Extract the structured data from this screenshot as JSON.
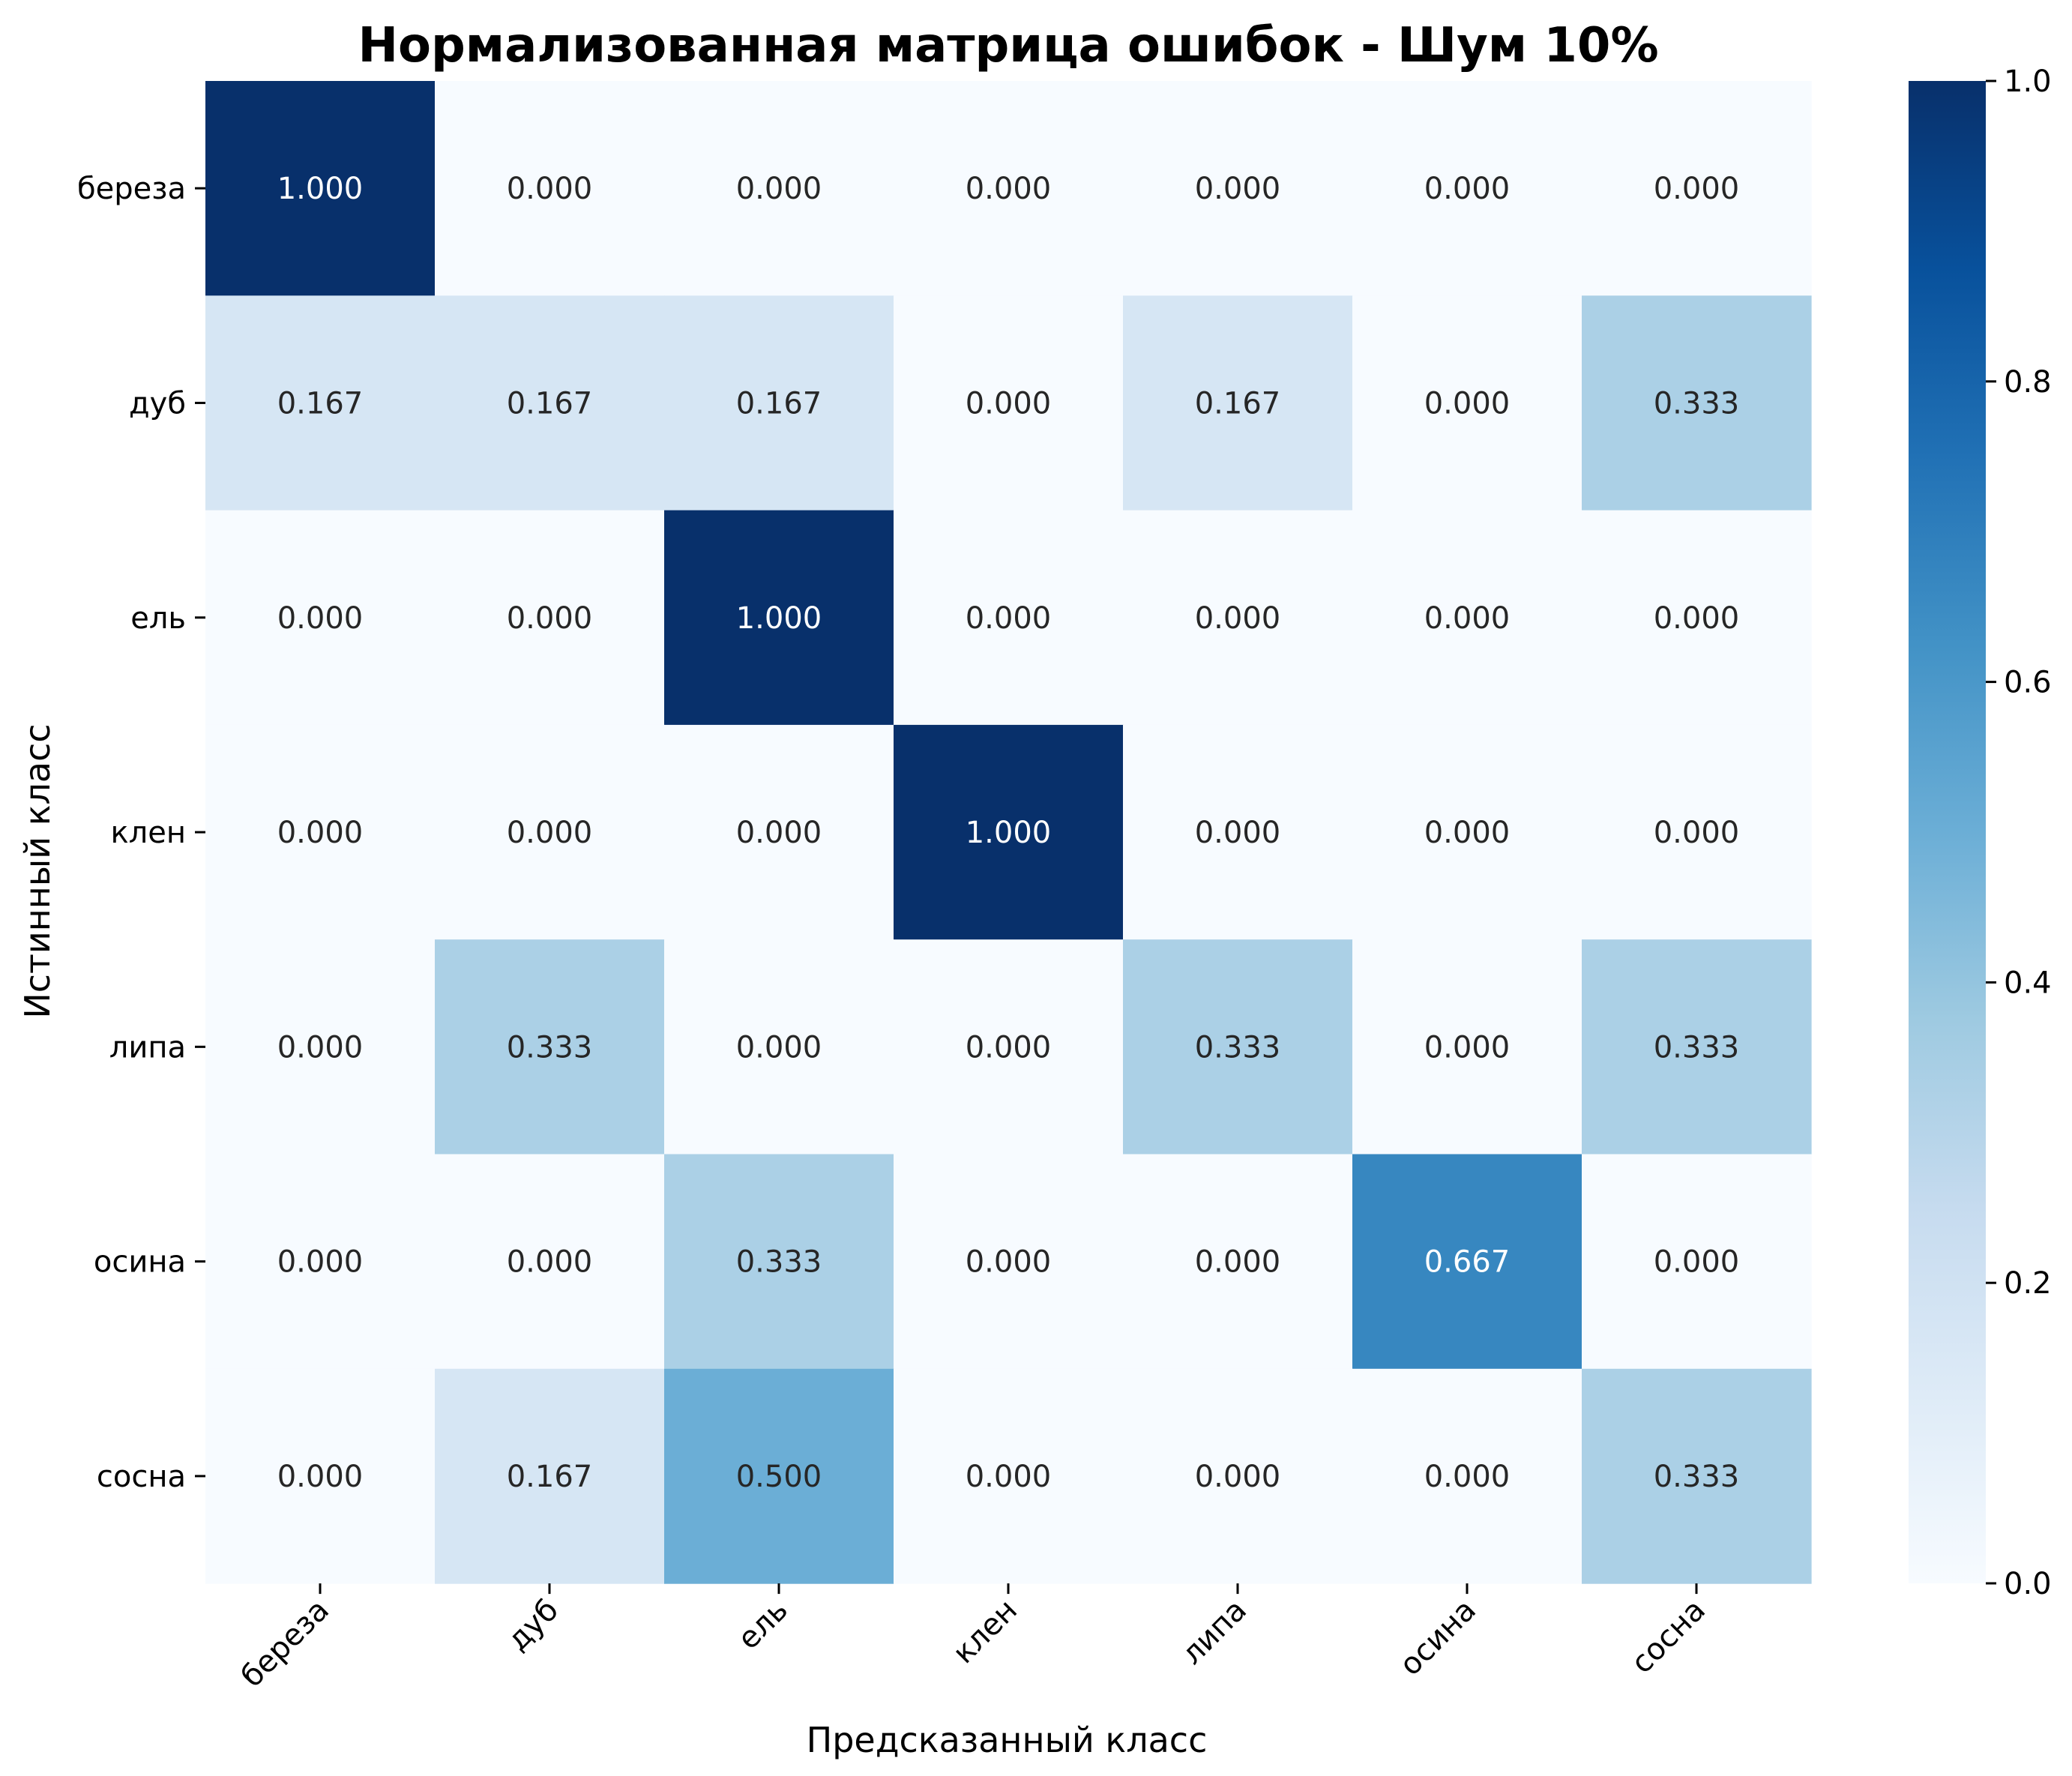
{
  "chart_data": {
    "type": "heatmap",
    "title": "Нормализованная матрица ошибок - Шум 10%",
    "xlabel": "Предсказанный класс",
    "ylabel": "Истинный класс",
    "x_categories": [
      "береза",
      "дуб",
      "ель",
      "клен",
      "липа",
      "осина",
      "сосна"
    ],
    "y_categories": [
      "береза",
      "дуб",
      "ель",
      "клен",
      "липа",
      "осина",
      "сосна"
    ],
    "values": [
      [
        1.0,
        0.0,
        0.0,
        0.0,
        0.0,
        0.0,
        0.0
      ],
      [
        0.167,
        0.167,
        0.167,
        0.0,
        0.167,
        0.0,
        0.333
      ],
      [
        0.0,
        0.0,
        1.0,
        0.0,
        0.0,
        0.0,
        0.0
      ],
      [
        0.0,
        0.0,
        0.0,
        1.0,
        0.0,
        0.0,
        0.0
      ],
      [
        0.0,
        0.333,
        0.0,
        0.0,
        0.333,
        0.0,
        0.333
      ],
      [
        0.0,
        0.0,
        0.333,
        0.0,
        0.0,
        0.667,
        0.0
      ],
      [
        0.0,
        0.167,
        0.5,
        0.0,
        0.0,
        0.0,
        0.333
      ]
    ],
    "value_format_decimals": 3,
    "colormap": "Blues",
    "colorbar": {
      "range": [
        0,
        1
      ],
      "ticks": [
        "0.0",
        "0.2",
        "0.4",
        "0.6",
        "0.8",
        "1.0"
      ]
    },
    "colors": {
      "low": "#f7fbff",
      "high": "#08306b",
      "text_dark": "#262626",
      "text_light": "#ffffff"
    },
    "grid": false
  }
}
